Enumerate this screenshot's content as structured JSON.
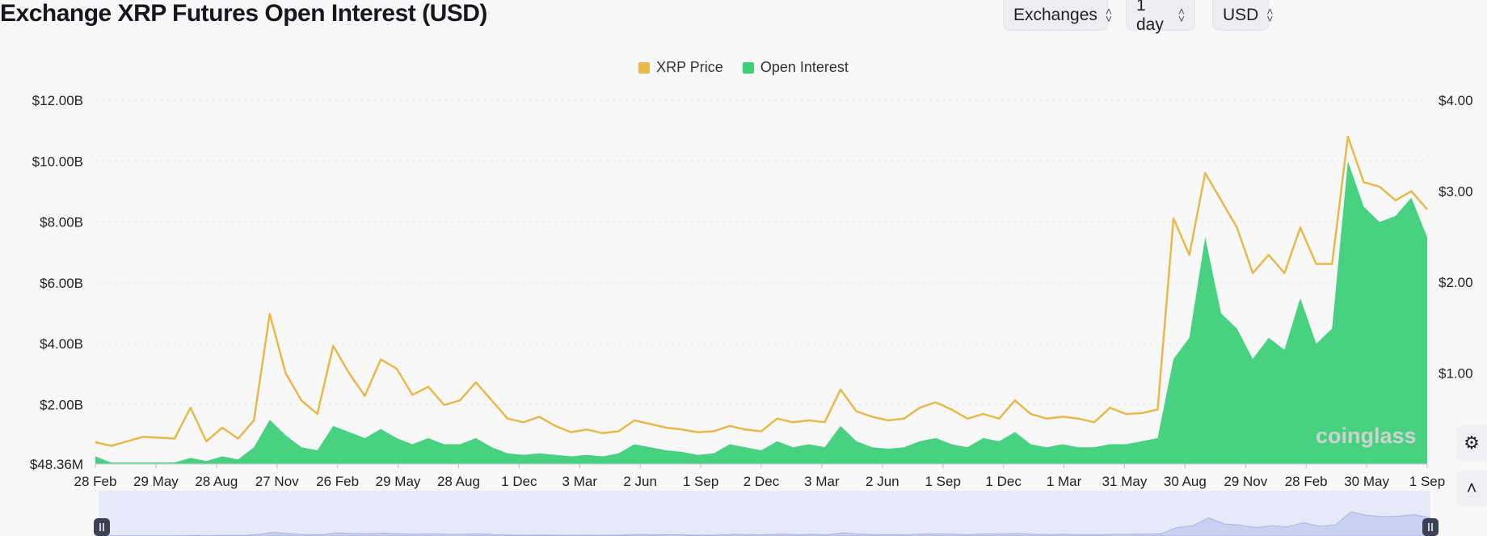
{
  "title": "Exchange XRP Futures Open Interest (USD)",
  "controls": {
    "exchanges_label": "Exchanges",
    "interval_label": "1 day",
    "currency_label": "USD"
  },
  "watermark": "coinglass",
  "colors": {
    "price": "#e8b94a",
    "open_interest": "#3ecf7a",
    "navigator_fill": "#e6e9f7",
    "background": "#f8f8f8"
  },
  "chart_data": {
    "type": "area",
    "legend_placement": "top-center",
    "grid": true,
    "left_axis": {
      "ticks": [
        "$48.36M",
        "$2.00B",
        "$4.00B",
        "$6.00B",
        "$8.00B",
        "$10.00B",
        "$12.00B"
      ],
      "ylim": [
        0.04836,
        12
      ]
    },
    "right_axis": {
      "ticks": [
        "$1.00",
        "$2.00",
        "$3.00",
        "$4.00"
      ],
      "ylim": [
        0,
        4
      ]
    },
    "x_tick_labels": [
      "28 Feb",
      "29 May",
      "28 Aug",
      "27 Nov",
      "26 Feb",
      "29 May",
      "28 Aug",
      "1 Dec",
      "3 Mar",
      "2 Jun",
      "1 Sep",
      "2 Dec",
      "3 Mar",
      "2 Jun",
      "1 Sep",
      "1 Dec",
      "1 Mar",
      "31 May",
      "30 Aug",
      "29 Nov",
      "28 Feb",
      "30 May",
      "1 Sep"
    ],
    "series": [
      {
        "name": "XRP Price",
        "axis": "right",
        "values": [
          0.24,
          0.2,
          0.25,
          0.3,
          0.29,
          0.28,
          0.62,
          0.25,
          0.4,
          0.28,
          0.48,
          1.65,
          1.0,
          0.7,
          0.55,
          1.3,
          1.0,
          0.75,
          1.15,
          1.05,
          0.76,
          0.85,
          0.65,
          0.7,
          0.9,
          0.7,
          0.5,
          0.46,
          0.52,
          0.42,
          0.35,
          0.38,
          0.34,
          0.36,
          0.48,
          0.44,
          0.4,
          0.38,
          0.35,
          0.36,
          0.42,
          0.38,
          0.36,
          0.5,
          0.46,
          0.48,
          0.46,
          0.82,
          0.58,
          0.52,
          0.48,
          0.5,
          0.62,
          0.68,
          0.6,
          0.5,
          0.55,
          0.5,
          0.7,
          0.55,
          0.5,
          0.52,
          0.5,
          0.46,
          0.62,
          0.55,
          0.56,
          0.6,
          2.7,
          2.3,
          3.2,
          2.9,
          2.6,
          2.1,
          2.3,
          2.1,
          2.6,
          2.2,
          2.2,
          3.6,
          3.1,
          3.05,
          2.9,
          3.0,
          2.8
        ]
      },
      {
        "name": "Open Interest",
        "axis": "left",
        "values": [
          0.3,
          0.1,
          0.1,
          0.1,
          0.1,
          0.1,
          0.25,
          0.15,
          0.3,
          0.2,
          0.6,
          1.5,
          1.0,
          0.6,
          0.5,
          1.3,
          1.1,
          0.9,
          1.2,
          0.9,
          0.7,
          0.9,
          0.7,
          0.7,
          0.9,
          0.6,
          0.4,
          0.35,
          0.4,
          0.35,
          0.3,
          0.35,
          0.3,
          0.4,
          0.7,
          0.6,
          0.5,
          0.45,
          0.35,
          0.4,
          0.7,
          0.6,
          0.5,
          0.8,
          0.6,
          0.7,
          0.6,
          1.3,
          0.8,
          0.6,
          0.55,
          0.6,
          0.8,
          0.9,
          0.7,
          0.6,
          0.9,
          0.8,
          1.1,
          0.7,
          0.6,
          0.7,
          0.6,
          0.6,
          0.7,
          0.7,
          0.8,
          0.9,
          3.5,
          4.2,
          7.5,
          5.0,
          4.5,
          3.5,
          4.2,
          3.8,
          5.5,
          4.0,
          4.5,
          10.0,
          8.5,
          8.0,
          8.2,
          8.8,
          7.5
        ]
      }
    ]
  }
}
